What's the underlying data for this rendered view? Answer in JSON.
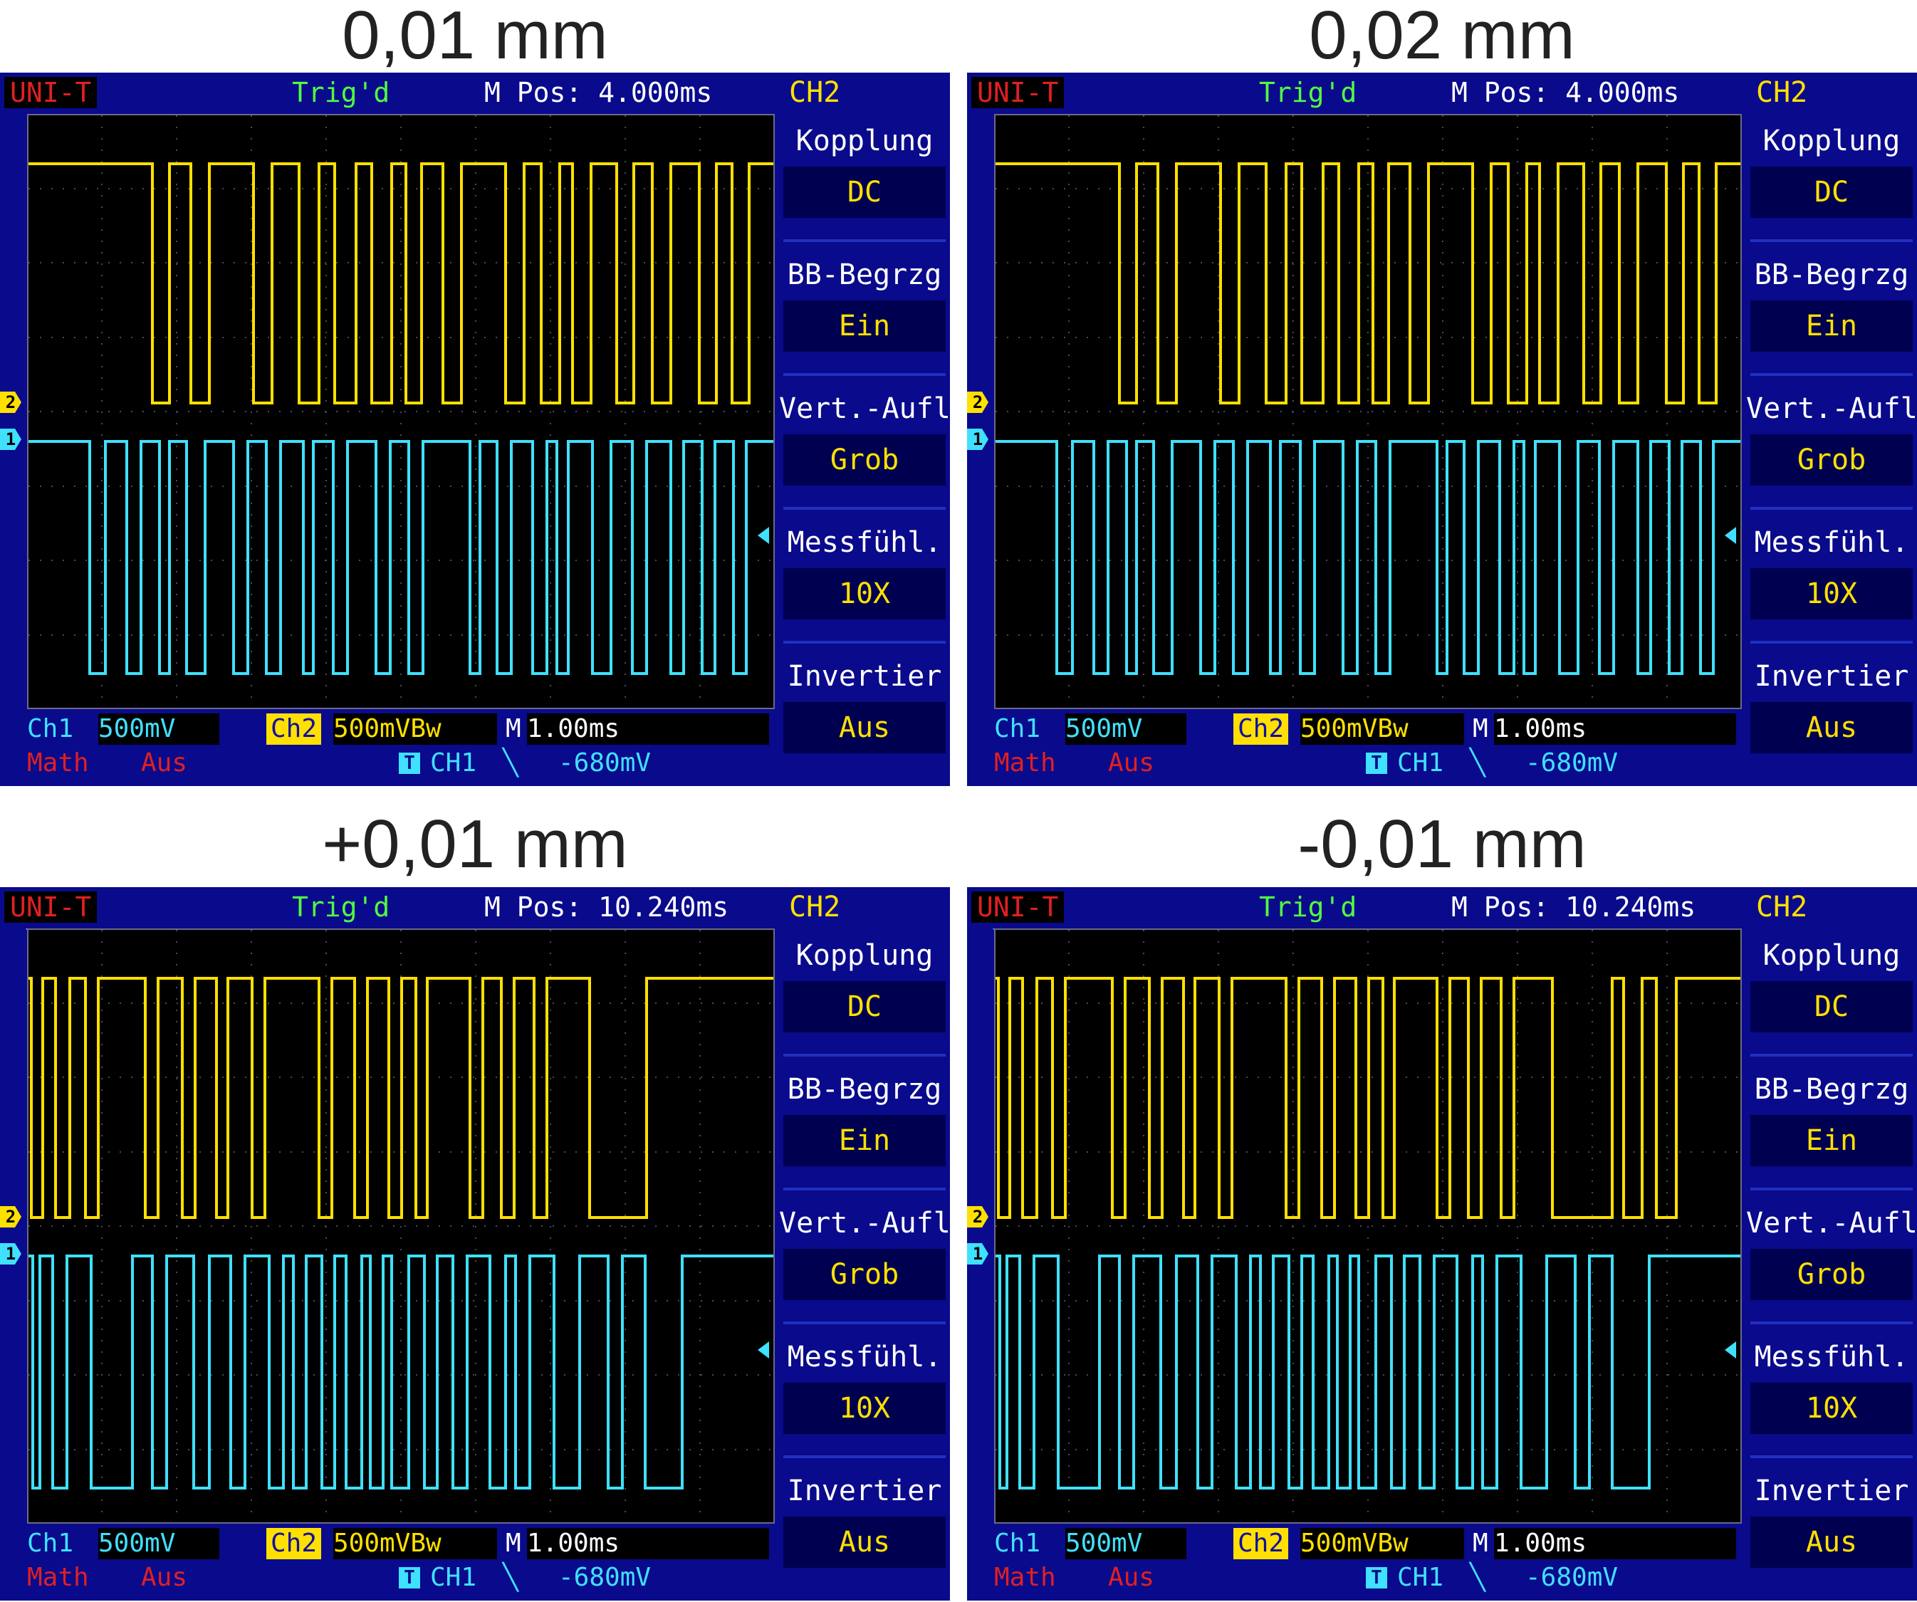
{
  "panels": [
    {
      "caption": "0,01 mm",
      "scope": {
        "brand": "UNI-T",
        "trigger_status": "Trig'd",
        "m_pos": "M Pos: 4.000ms",
        "channel": "CH2",
        "ch2_marker": "2",
        "ch1_marker": "1",
        "menu": [
          {
            "label": "Kopplung",
            "value": "DC"
          },
          {
            "label": "BB-Begrzg",
            "value": "Ein"
          },
          {
            "label": "Vert.-Aufl.",
            "value": "Grob"
          },
          {
            "label": "Messfühl.",
            "value": "10X"
          },
          {
            "label": "Invertier",
            "value": "Aus"
          }
        ],
        "status": {
          "ch1_label": "Ch1",
          "ch1_value": "500mV",
          "ch2_label": "Ch2",
          "ch2_value": "500mVBw",
          "m_label": "M",
          "m_value": "1.00ms",
          "math_label": "Math",
          "math_value": "Aus",
          "trig_icon": "T",
          "trig_source": "CH1",
          "trig_slope": "╲",
          "trig_level": "-680mV"
        },
        "colors": {
          "ch2_trace": "#ffe000",
          "ch1_trace": "#40e0ff",
          "background": "#0a0a8c"
        }
      }
    },
    {
      "caption": "0,02 mm",
      "scope": {
        "brand": "UNI-T",
        "trigger_status": "Trig'd",
        "m_pos": "M Pos: 4.000ms",
        "channel": "CH2",
        "ch2_marker": "2",
        "ch1_marker": "1",
        "menu": [
          {
            "label": "Kopplung",
            "value": "DC"
          },
          {
            "label": "BB-Begrzg",
            "value": "Ein"
          },
          {
            "label": "Vert.-Aufl.",
            "value": "Grob"
          },
          {
            "label": "Messfühl.",
            "value": "10X"
          },
          {
            "label": "Invertier",
            "value": "Aus"
          }
        ],
        "status": {
          "ch1_label": "Ch1",
          "ch1_value": "500mV",
          "ch2_label": "Ch2",
          "ch2_value": "500mVBw",
          "m_label": "M",
          "m_value": "1.00ms",
          "math_label": "Math",
          "math_value": "Aus",
          "trig_icon": "T",
          "trig_source": "CH1",
          "trig_slope": "╲",
          "trig_level": "-680mV"
        },
        "colors": {
          "ch2_trace": "#ffe000",
          "ch1_trace": "#40e0ff",
          "background": "#0a0a8c"
        }
      }
    },
    {
      "caption": "+0,01 mm",
      "scope": {
        "brand": "UNI-T",
        "trigger_status": "Trig'd",
        "m_pos": "M Pos: 10.240ms",
        "channel": "CH2",
        "ch2_marker": "2",
        "ch1_marker": "1",
        "menu": [
          {
            "label": "Kopplung",
            "value": "DC"
          },
          {
            "label": "BB-Begrzg",
            "value": "Ein"
          },
          {
            "label": "Vert.-Aufl.",
            "value": "Grob"
          },
          {
            "label": "Messfühl.",
            "value": "10X"
          },
          {
            "label": "Invertier",
            "value": "Aus"
          }
        ],
        "status": {
          "ch1_label": "Ch1",
          "ch1_value": "500mV",
          "ch2_label": "Ch2",
          "ch2_value": "500mVBw",
          "m_label": "M",
          "m_value": "1.00ms",
          "math_label": "Math",
          "math_value": "Aus",
          "trig_icon": "T",
          "trig_source": "CH1",
          "trig_slope": "╲",
          "trig_level": "-680mV"
        },
        "colors": {
          "ch2_trace": "#ffe000",
          "ch1_trace": "#40e0ff",
          "background": "#0a0a8c"
        }
      }
    },
    {
      "caption": "-0,01 mm",
      "scope": {
        "brand": "UNI-T",
        "trigger_status": "Trig'd",
        "m_pos": "M Pos: 10.240ms",
        "channel": "CH2",
        "ch2_marker": "2",
        "ch1_marker": "1",
        "menu": [
          {
            "label": "Kopplung",
            "value": "DC"
          },
          {
            "label": "BB-Begrzg",
            "value": "Ein"
          },
          {
            "label": "Vert.-Aufl.",
            "value": "Grob"
          },
          {
            "label": "Messfühl.",
            "value": "10X"
          },
          {
            "label": "Invertier",
            "value": "Aus"
          }
        ],
        "status": {
          "ch1_label": "Ch1",
          "ch1_value": "500mV",
          "ch2_label": "Ch2",
          "ch2_value": "500mVBw",
          "m_label": "M",
          "m_value": "1.00ms",
          "math_label": "Math",
          "math_value": "Aus",
          "trig_icon": "T",
          "trig_source": "CH1",
          "trig_slope": "╲",
          "trig_level": "-680mV"
        },
        "colors": {
          "ch2_trace": "#ffe000",
          "ch1_trace": "#40e0ff",
          "background": "#0a0a8c"
        }
      }
    }
  ]
}
